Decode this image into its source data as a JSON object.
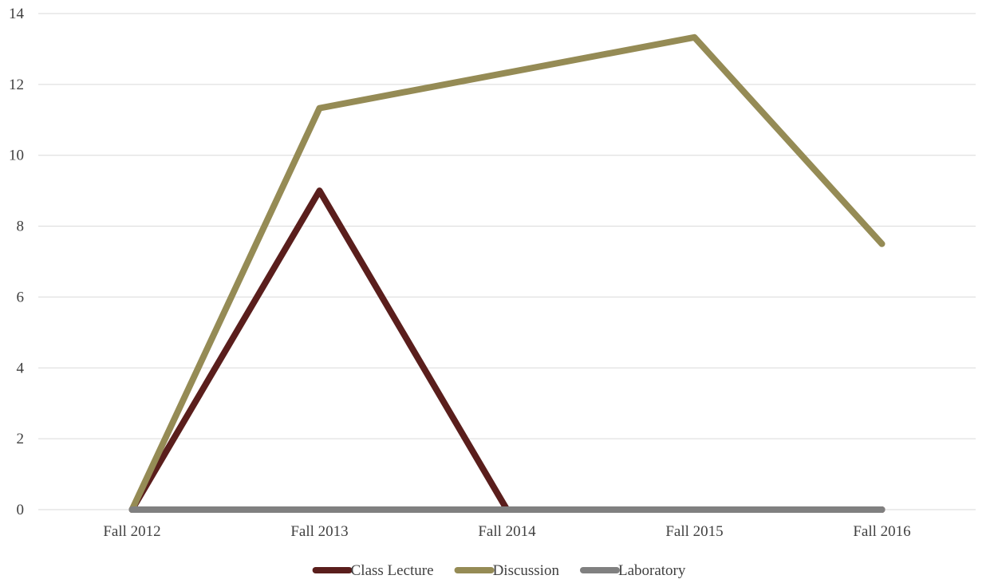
{
  "chart_data": {
    "type": "line",
    "categories": [
      "Fall 2012",
      "Fall 2013",
      "Fall 2014",
      "Fall 2015",
      "Fall 2016"
    ],
    "series": [
      {
        "name": "Class Lecture",
        "values": [
          0,
          9,
          0,
          0,
          0
        ],
        "color": "#5a1e1c"
      },
      {
        "name": "Discussion",
        "values": [
          0,
          11.33,
          12.33,
          13.33,
          7.5
        ],
        "color": "#958b55"
      },
      {
        "name": "Laboratory",
        "values": [
          0,
          0,
          0,
          0,
          0
        ],
        "color": "#808080"
      }
    ],
    "ylim": [
      0,
      14
    ],
    "yticks": [
      0,
      2,
      4,
      6,
      8,
      10,
      12,
      14
    ],
    "grid": true,
    "legend_position": "bottom"
  }
}
